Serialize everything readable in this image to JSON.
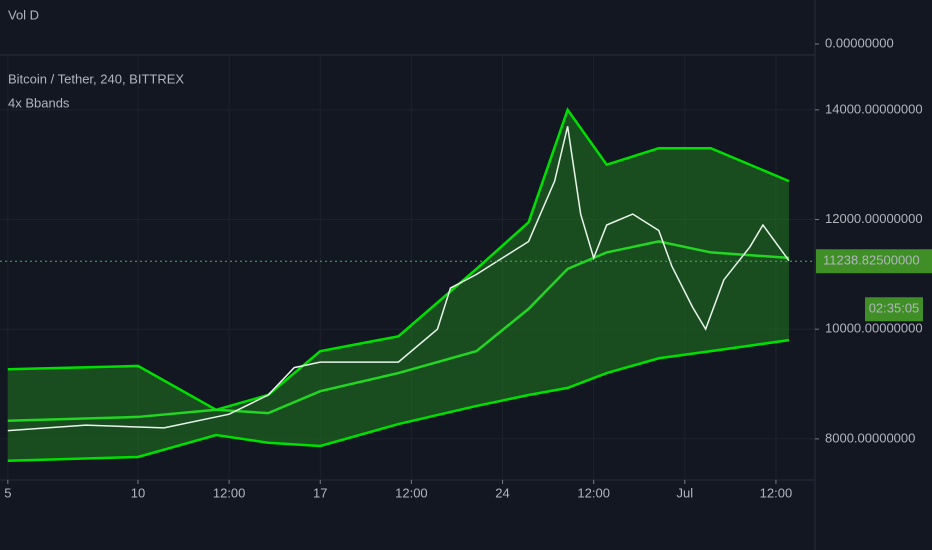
{
  "chart_data": {
    "type": "line",
    "title": "Bitcoin / Tether, 240, BITTREX",
    "indicator": "4x Bbands",
    "volume_label": "Vol D",
    "volume_yticks": [
      {
        "value": 0,
        "label": "0.00000000"
      }
    ],
    "xlim": [
      4.7,
      36.0
    ],
    "xticks": [
      {
        "value": 5,
        "label": "5"
      },
      {
        "value": 10,
        "label": "10"
      },
      {
        "value": 13.5,
        "label": "12:00"
      },
      {
        "value": 17,
        "label": "17"
      },
      {
        "value": 20.5,
        "label": "12:00"
      },
      {
        "value": 24,
        "label": "24"
      },
      {
        "value": 27.5,
        "label": "12:00"
      },
      {
        "value": 31,
        "label": "Jul"
      },
      {
        "value": 34.5,
        "label": "12:00"
      }
    ],
    "ylim": [
      7250,
      15000
    ],
    "yticks": [
      {
        "value": 8000,
        "label": "8000.00000000"
      },
      {
        "value": 10000,
        "label": "10000.00000000"
      },
      {
        "value": 12000,
        "label": "12000.00000000"
      },
      {
        "value": 14000,
        "label": "14000.00000000"
      }
    ],
    "grid": true,
    "band_fill": "#1f7a1f",
    "series": [
      {
        "color": "#00e000",
        "x": [
          5,
          10,
          13,
          15,
          17,
          20,
          23,
          25,
          26.5,
          28,
          30,
          32,
          35
        ],
        "values": [
          9270,
          9330,
          8530,
          8800,
          9600,
          9870,
          11100,
          11950,
          14000,
          13000,
          13300,
          13300,
          12700
        ]
      },
      {
        "color": "#22d622",
        "x": [
          5,
          10,
          13,
          15,
          17,
          20,
          23,
          25,
          26.5,
          28,
          30,
          32,
          35
        ],
        "values": [
          8330,
          8400,
          8530,
          8470,
          8870,
          9200,
          9600,
          10370,
          11100,
          11400,
          11600,
          11400,
          11300
        ]
      },
      {
        "color": "#00e000",
        "x": [
          5,
          10,
          13,
          15,
          17,
          20,
          23,
          25,
          26.5,
          28,
          30,
          32,
          35
        ],
        "values": [
          7600,
          7670,
          8070,
          7930,
          7870,
          8270,
          8600,
          8800,
          8930,
          9200,
          9470,
          9600,
          9800
        ]
      },
      {
        "color": "#e8f5e9",
        "x": [
          5,
          8,
          11,
          13.5,
          15,
          16,
          17,
          20,
          20.5,
          21.5,
          22,
          23,
          24,
          25,
          26,
          26.5,
          27,
          27.5,
          28,
          29,
          30,
          30.5,
          31.3,
          31.8,
          32.5,
          33.5,
          34,
          35
        ],
        "values": [
          8150,
          8250,
          8200,
          8450,
          8800,
          9300,
          9400,
          9400,
          9600,
          10000,
          10750,
          11000,
          11300,
          11600,
          12700,
          13700,
          12100,
          11300,
          11900,
          12100,
          11800,
          11150,
          10400,
          10000,
          10900,
          11500,
          11900,
          11250
        ]
      }
    ],
    "current_price": {
      "value": 11238.825,
      "label": "11238.82500000"
    },
    "countdown": "02:35:05"
  }
}
